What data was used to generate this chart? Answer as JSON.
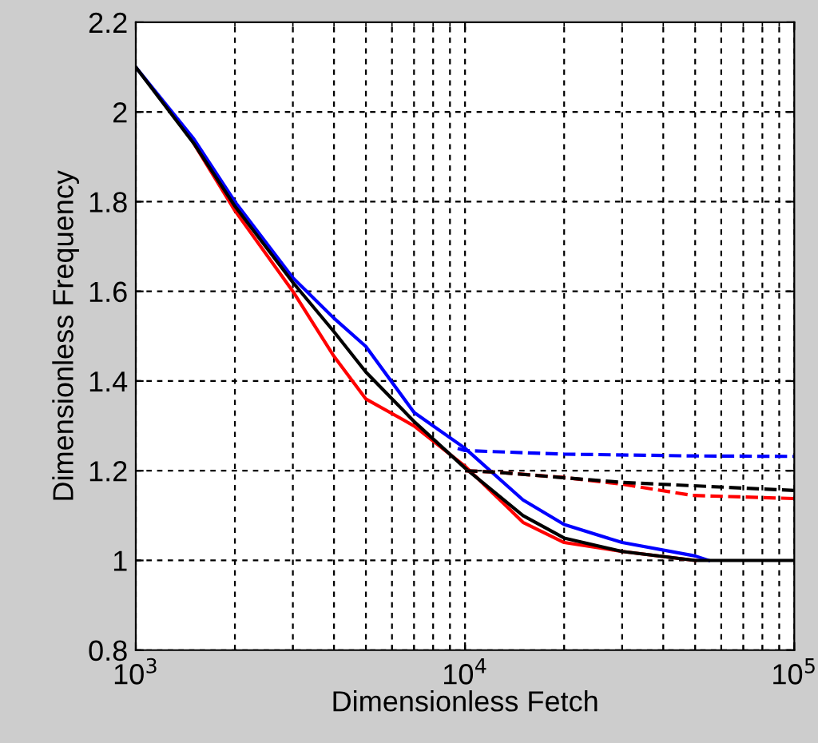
{
  "chart_data": {
    "type": "line",
    "xlabel": "Dimensionless Fetch",
    "ylabel": "Dimensionless Frequency",
    "log": "x",
    "grid": true,
    "legend": false,
    "marker": "none",
    "xlim": [
      1000,
      100000
    ],
    "xticks": [
      {
        "value": 1000,
        "label": "10$^{3}$"
      },
      {
        "value": 10000,
        "label": "10$^{4}$"
      },
      {
        "value": 100000,
        "label": "10$^{5}$"
      }
    ],
    "ylim": [
      0.8,
      2.2
    ],
    "yticks": [
      0.8,
      1,
      1.2,
      1.4,
      1.6,
      1.8,
      2,
      2.2
    ],
    "series": [
      {
        "color": "#ff0000",
        "line_style": "solid",
        "x": [
          1500,
          2000,
          3000,
          4000,
          5000,
          7000,
          10000,
          15000,
          20000,
          30000,
          50000
        ],
        "values": [
          1.93,
          1.78,
          1.6,
          1.455,
          1.36,
          1.3,
          1.21,
          1.085,
          1.04,
          1.02,
          1.0
        ]
      },
      {
        "color": "#0000ff",
        "line_style": "solid",
        "x": [
          1000,
          1500,
          2000,
          3000,
          4000,
          5000,
          7000,
          10000,
          15000,
          20000,
          30000,
          50000,
          55000
        ],
        "values": [
          2.1,
          1.94,
          1.8,
          1.63,
          1.54,
          1.477,
          1.33,
          1.25,
          1.135,
          1.08,
          1.04,
          1.01,
          1.0
        ]
      },
      {
        "color": "#000000",
        "line_style": "solid",
        "x": [
          1000,
          1500,
          2000,
          3000,
          4000,
          5000,
          7000,
          10000,
          15000,
          20000,
          30000,
          50000,
          100000
        ],
        "values": [
          2.1,
          1.93,
          1.79,
          1.62,
          1.51,
          1.42,
          1.31,
          1.206,
          1.1,
          1.05,
          1.02,
          1.0,
          1.0
        ]
      },
      {
        "color": "#0000ff",
        "line_style": "dashed",
        "x": [
          9500,
          10000,
          20000,
          50000,
          100000
        ],
        "values": [
          1.25,
          1.245,
          1.237,
          1.233,
          1.232
        ]
      },
      {
        "color": "#ff0000",
        "line_style": "dashed",
        "x": [
          10000,
          12300,
          20000,
          30000,
          49000,
          100000
        ],
        "values": [
          1.2,
          1.197,
          1.185,
          1.17,
          1.145,
          1.138
        ]
      },
      {
        "color": "#000000",
        "line_style": "dashed",
        "x": [
          10000,
          12300,
          30000,
          100000
        ],
        "values": [
          1.2,
          1.197,
          1.174,
          1.156
        ]
      }
    ]
  }
}
